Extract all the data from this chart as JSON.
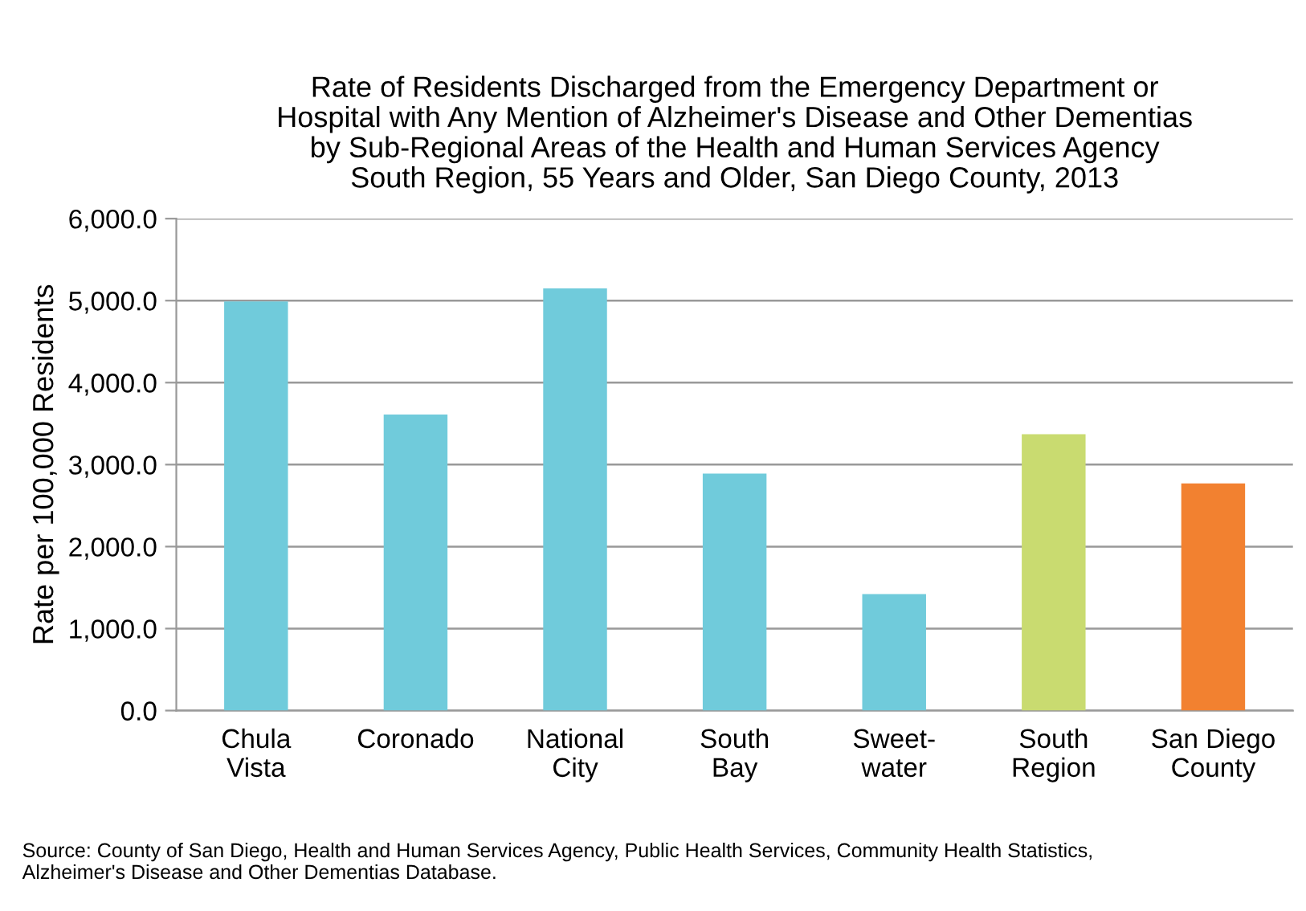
{
  "chart_data": {
    "type": "bar",
    "title": "Rate of Residents Discharged from the Emergency Department or\nHospital with Any Mention of Alzheimer's Disease and Other Dementias\nby Sub-Regional Areas of the Health and Human Services Agency\nSouth Region, 55 Years and Older, San Diego County, 2013",
    "ylabel": "Rate per 100,000 Residents",
    "categories": [
      "Chula\nVista",
      "Coronado",
      "National\nCity",
      "South\nBay",
      "Sweet-\nwater",
      "South\nRegion",
      "San Diego\nCounty"
    ],
    "values": [
      4990,
      3610,
      5150,
      2890,
      1420,
      3370,
      2770
    ],
    "colors": [
      "#70cbdb",
      "#70cbdb",
      "#70cbdb",
      "#70cbdb",
      "#70cbdb",
      "#c9db70",
      "#f28130"
    ],
    "ylim": [
      0,
      6000
    ],
    "yticks": [
      {
        "value": 0,
        "label": "0.0"
      },
      {
        "value": 1000,
        "label": "1,000.0"
      },
      {
        "value": 2000,
        "label": "2,000.0"
      },
      {
        "value": 3000,
        "label": "3,000.0"
      },
      {
        "value": 4000,
        "label": "4,000.0"
      },
      {
        "value": 5000,
        "label": "5,000.0"
      },
      {
        "value": 6000,
        "label": "6,000.0"
      }
    ],
    "grid": "y",
    "legend": false,
    "annotations": [
      "Source: County of San Diego, Health and Human Services Agency, Public Health Services, Community Health Statistics,\nAlzheimer's Disease and Other Dementias Database."
    ]
  }
}
